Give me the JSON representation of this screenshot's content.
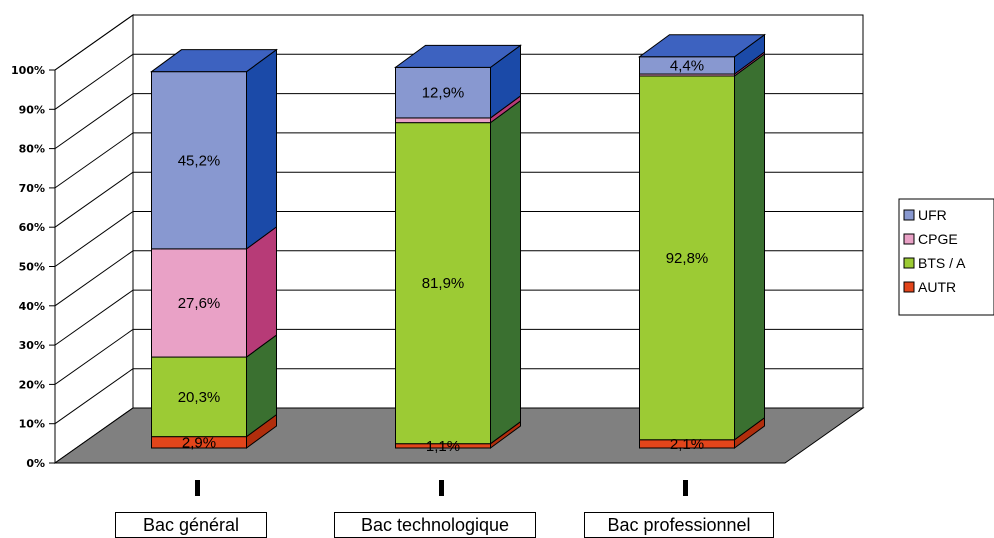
{
  "chart_data": {
    "type": "bar",
    "stacked": true,
    "style": "3d",
    "categories": [
      "Bac général",
      "Bac technologique",
      "Bac professionnel"
    ],
    "yticks": [
      "0%",
      "10%",
      "20%",
      "30%",
      "40%",
      "50%",
      "60%",
      "70%",
      "80%",
      "90%",
      "100%"
    ],
    "ylim": [
      0,
      100
    ],
    "grid": true,
    "legend_position": "right",
    "series": [
      {
        "name": "AUTR",
        "values": [
          2.9,
          1.1,
          2.1
        ],
        "labels": [
          "2,9%",
          "1,1%",
          "2,1%"
        ],
        "color": "#e2451b",
        "side": "#b02e0c",
        "top": "#ee6a3c"
      },
      {
        "name": "BTS / A",
        "values": [
          20.3,
          81.9,
          92.8
        ],
        "labels": [
          "20,3%",
          "81,9%",
          "92,8%"
        ],
        "color": "#9ccb34",
        "side": "#3a7030",
        "top": "#b6dc55"
      },
      {
        "name": "CPGE",
        "values": [
          27.6,
          1.2,
          0.5
        ],
        "labels": [
          "27,6%",
          "",
          ""
        ],
        "color": "#e9a1c6",
        "side": "#b73b77",
        "top": "#f0bcd6"
      },
      {
        "name": "UFR",
        "values": [
          45.2,
          12.9,
          4.4
        ],
        "labels": [
          "45,2%",
          "12,9%",
          "4,4%"
        ],
        "color": "#8898d0",
        "side": "#1b4aa8",
        "top": "#3d62c0"
      }
    ],
    "legend_order": [
      "UFR",
      "CPGE",
      "BTS / A",
      "AUTR"
    ],
    "colors": {
      "floor": "#808080",
      "grid": "#000000"
    }
  }
}
